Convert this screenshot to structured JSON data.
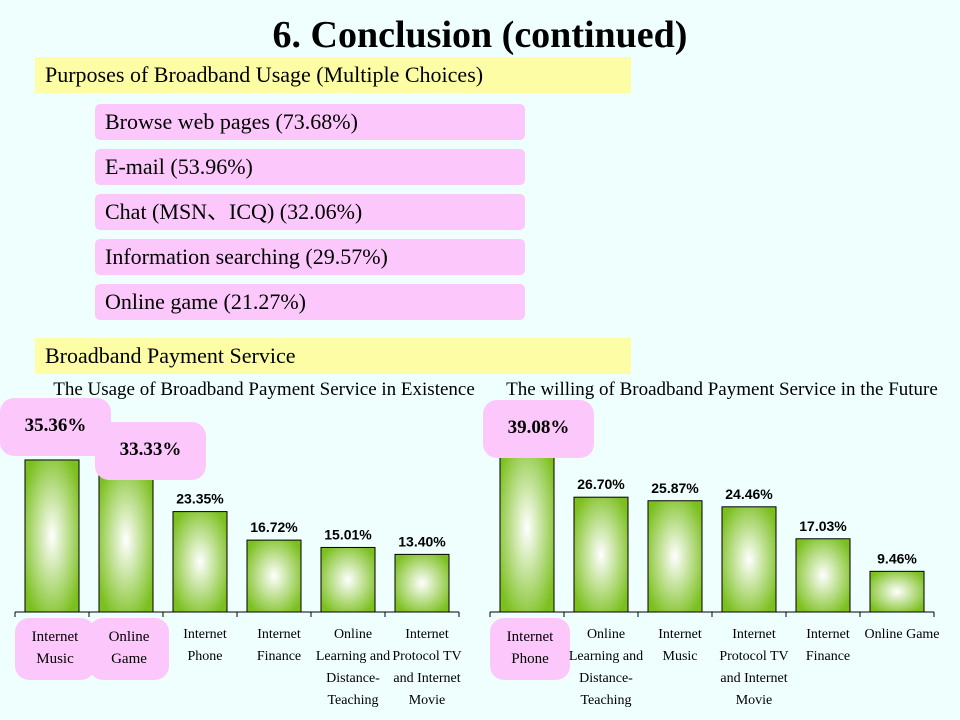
{
  "title": "6. Conclusion (continued)",
  "purposes_header": "Purposes of Broadband Usage (Multiple Choices)",
  "purposes": [
    "Browse web pages (73.68%)",
    "E-mail (53.96%)",
    "Chat (MSN、ICQ) (32.06%)",
    "Information searching (29.57%)",
    "Online game (21.27%)"
  ],
  "payment_header": "Broadband Payment Service",
  "colors": {
    "bar_edge": "#7cc020",
    "bar_center": "#ffffff",
    "badge": "#fcc8fc",
    "section": "#fdfda6",
    "background": "#eefffe"
  },
  "chart_data": [
    {
      "type": "bar",
      "title": "The Usage of Broadband Payment Service in Existence",
      "categories": [
        "Internet Music",
        "Online Game",
        "Internet Phone",
        "Internet Finance",
        "Online Learning and Distance-Teaching",
        "Internet Protocol TV and Internet Movie"
      ],
      "values": [
        35.36,
        33.33,
        23.35,
        16.72,
        15.01,
        13.4
      ],
      "value_labels": [
        "35.36%",
        "33.33%",
        "23.35%",
        "16.72%",
        "15.01%",
        "13.40%"
      ],
      "ylim": [
        0,
        40
      ],
      "grid": false
    },
    {
      "type": "bar",
      "title": "The willing of Broadband Payment Service in the Future",
      "categories": [
        "Internet Phone",
        "Online Learning and Distance-Teaching",
        "Internet Music",
        "Internet Protocol TV and Internet Movie",
        "Internet Finance",
        "Online Game"
      ],
      "values": [
        39.08,
        26.7,
        25.87,
        24.46,
        17.03,
        9.46
      ],
      "value_labels": [
        "39.08%",
        "26.70%",
        "25.87%",
        "24.46%",
        "17.03%",
        "9.46%"
      ],
      "ylim": [
        0,
        40
      ],
      "grid": false
    }
  ],
  "highlight_cats_left": [
    "Internet\nMusic",
    "Online\nGame"
  ],
  "highlight_cat_right": "Internet\nPhone"
}
